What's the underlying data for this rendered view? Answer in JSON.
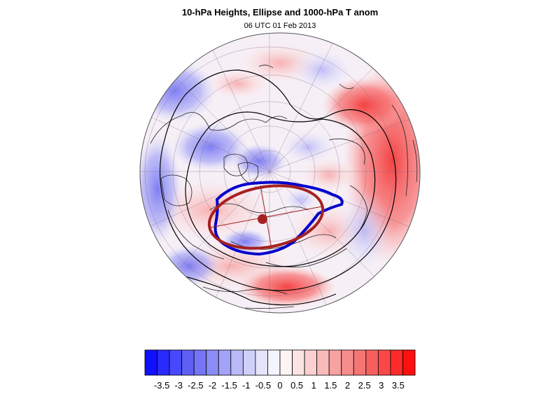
{
  "header": {
    "title": "10-hPa Heights, Ellipse and 1000-hPa T anom",
    "subtitle": "06 UTC 01 Feb 2013"
  },
  "colorbar": {
    "labels": [
      "-3.5",
      "-3",
      "-2.5",
      "-2",
      "-1.5",
      "-1",
      "-0.5",
      "0",
      "0.5",
      "1",
      "1.5",
      "2",
      "2.5",
      "3",
      "3.5"
    ],
    "min": -4,
    "max": 4,
    "colors": [
      "#1010ff",
      "#2a2aff",
      "#4848ff",
      "#5f5ff6",
      "#7575f5",
      "#8c8cf6",
      "#a2a2f8",
      "#babafa",
      "#cfcffc",
      "#e4e4fd",
      "#f4f4ff",
      "#fff4f4",
      "#fde4e4",
      "#fcd0d0",
      "#fababa",
      "#f8a2a2",
      "#f68c8c",
      "#f57575",
      "#f65f5f",
      "#fa4848",
      "#ff2a2a",
      "#ff1010"
    ]
  },
  "map": {
    "projection": "polar stereographic (northern hemisphere)",
    "vortex_contour_color": "#0000cc",
    "ellipse_color": "#a52020",
    "height_contour_color": "#000000"
  }
}
